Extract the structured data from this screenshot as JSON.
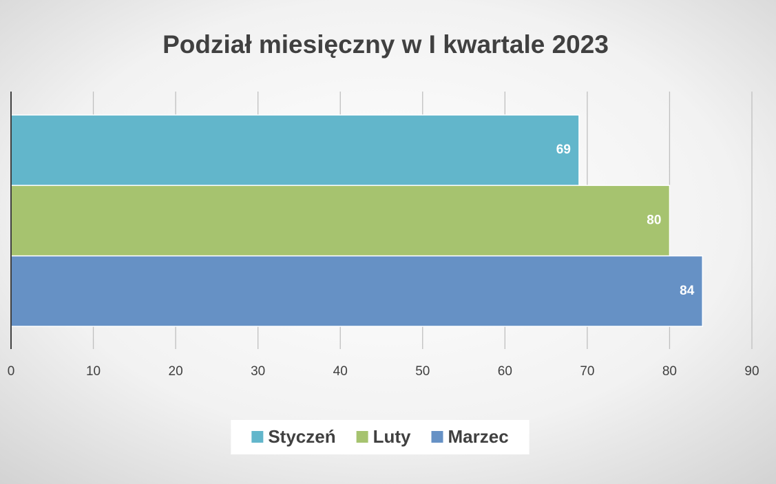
{
  "chart_data": {
    "type": "bar",
    "orientation": "horizontal",
    "title": "Podział miesięczny w I kwartale 2023",
    "categories": [
      null
    ],
    "series": [
      {
        "name": "Styczeń",
        "color": "#62b6cb",
        "values": [
          69
        ]
      },
      {
        "name": "Luty",
        "color": "#a6c36f",
        "values": [
          80
        ]
      },
      {
        "name": "Marzec",
        "color": "#6691c5",
        "values": [
          84
        ]
      }
    ],
    "xlim": [
      0,
      90
    ],
    "xticks": [
      0,
      10,
      20,
      30,
      40,
      50,
      60,
      70,
      80,
      90
    ],
    "grid": true,
    "legend": "bottom",
    "data_labels": true
  }
}
